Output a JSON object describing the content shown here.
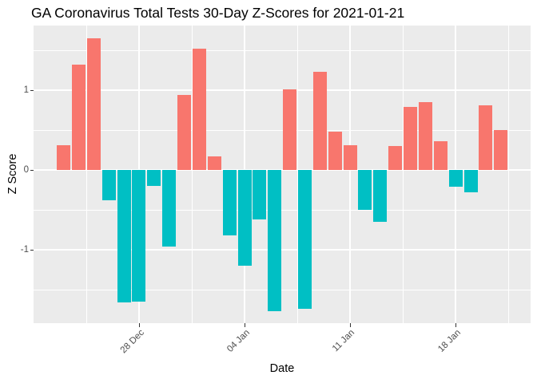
{
  "chart_data": {
    "type": "bar",
    "title": "GA Coronavirus Total Tests 30-Day Z-Scores for 2021-01-21",
    "xlabel": "Date",
    "ylabel": "Z Score",
    "dates": [
      "2020-12-23",
      "2020-12-24",
      "2020-12-25",
      "2020-12-26",
      "2020-12-27",
      "2020-12-28",
      "2020-12-29",
      "2020-12-30",
      "2020-12-31",
      "2021-01-01",
      "2021-01-02",
      "2021-01-03",
      "2021-01-04",
      "2021-01-05",
      "2021-01-06",
      "2021-01-07",
      "2021-01-08",
      "2021-01-09",
      "2021-01-10",
      "2021-01-11",
      "2021-01-12",
      "2021-01-13",
      "2021-01-14",
      "2021-01-15",
      "2021-01-16",
      "2021-01-17",
      "2021-01-18",
      "2021-01-19",
      "2021-01-20",
      "2021-01-21"
    ],
    "values": [
      0.31,
      1.32,
      1.65,
      -0.38,
      -1.66,
      -1.65,
      -0.2,
      -0.96,
      0.94,
      1.52,
      0.17,
      -0.82,
      -1.2,
      -0.62,
      -1.77,
      1.01,
      -1.74,
      1.23,
      0.48,
      0.31,
      -0.5,
      -0.65,
      0.3,
      0.79,
      0.85,
      0.36,
      -0.21,
      -0.28,
      0.81,
      0.5
    ],
    "x_tick_labels": [
      "28 Dec",
      "04 Jan",
      "11 Jan",
      "18 Jan"
    ],
    "x_tick_indices": [
      5,
      12,
      19,
      26
    ],
    "y_tick_labels": [
      "-1",
      "0",
      "1"
    ],
    "y_tick_values": [
      -1,
      0,
      1
    ],
    "ylim": [
      -1.92,
      1.81
    ],
    "grid": true,
    "legend_position": "none",
    "positive_color": "#F8766D",
    "negative_color": "#00BFC4",
    "panel_background": "#EBEBEB",
    "grid_color": "#FFFFFF",
    "tick_text_color": "#4D4D4D"
  }
}
